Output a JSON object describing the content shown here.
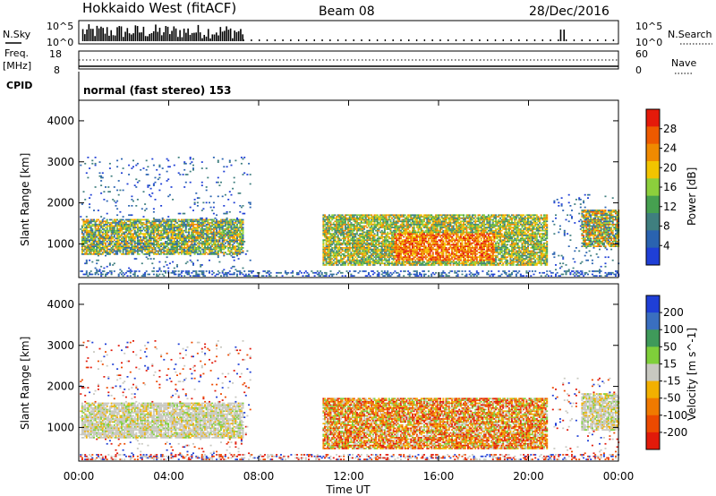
{
  "header": {
    "title": "Hokkaido West (fitACF)",
    "beam": "Beam 08",
    "date": "28/Dec/2016"
  },
  "panels_top": {
    "nsky_label": "N.Sky",
    "nsearch_label": "N.Search",
    "count_ticks": [
      "10^5",
      "10^0"
    ],
    "freq_label": "Freq.",
    "freq_unit": "[MHz]",
    "freq_ticks": [
      "18",
      "8"
    ],
    "nave_label": "Nave",
    "nave_ticks": [
      "60",
      "0"
    ],
    "cpid_label": "CPID",
    "cpid_text": "normal (fast stereo) 153"
  },
  "chart_data": [
    {
      "type": "heatmap",
      "panel": "power",
      "ylabel": "Slant Range [km]",
      "ylim": [
        180,
        4500
      ],
      "yticks": [
        "1000",
        "2000",
        "3000",
        "4000"
      ],
      "colorbar_label": "Power [dB]",
      "colorbar_ticks": [
        "4",
        "8",
        "12",
        "16",
        "20",
        "24",
        "28"
      ],
      "colorbar_colors": [
        "#1f3fd6",
        "#2a63b0",
        "#3f7f7f",
        "#46a050",
        "#8ccf3c",
        "#f2c400",
        "#f08a00",
        "#ee5a00",
        "#e41a0a"
      ],
      "regions": [
        {
          "t": [
            0.1,
            7.3
          ],
          "range": [
            700,
            1600
          ],
          "level": "low-mid"
        },
        {
          "t": [
            10.8,
            20.8
          ],
          "range": [
            450,
            1700
          ],
          "level": "mid-high"
        },
        {
          "t": [
            14.0,
            18.5
          ],
          "range": [
            550,
            1250
          ],
          "level": "high"
        },
        {
          "t": [
            22.3,
            24.0
          ],
          "range": [
            900,
            1800
          ],
          "level": "mid"
        }
      ]
    },
    {
      "type": "heatmap",
      "panel": "velocity",
      "xlabel": "Time UT",
      "ylabel": "Slant Range [km]",
      "ylim": [
        180,
        4500
      ],
      "xlim": [
        0,
        24
      ],
      "xticks": [
        "00:00",
        "04:00",
        "08:00",
        "12:00",
        "16:00",
        "20:00",
        "00:00"
      ],
      "yticks": [
        "1000",
        "2000",
        "3000",
        "4000"
      ],
      "colorbar_label": "Velocity [m s^-1]",
      "colorbar_ticks": [
        "200",
        "100",
        "50",
        "15",
        "-15",
        "-50",
        "-100",
        "-200"
      ],
      "colorbar_colors": [
        "#1f3fd6",
        "#3a6fc0",
        "#3f9a5a",
        "#7fcf3a",
        "#c8c8c0",
        "#f2b000",
        "#f07a00",
        "#ec4a00",
        "#e11a0a"
      ],
      "regions": [
        {
          "t": [
            0.1,
            7.3
          ],
          "range": [
            700,
            1600
          ],
          "velocity": "near zero"
        },
        {
          "t": [
            10.8,
            20.8
          ],
          "range": [
            450,
            1700
          ],
          "velocity": "-50 to -100"
        },
        {
          "t": [
            22.3,
            24.0
          ],
          "range": [
            900,
            1800
          ],
          "velocity": "near zero"
        }
      ]
    }
  ]
}
